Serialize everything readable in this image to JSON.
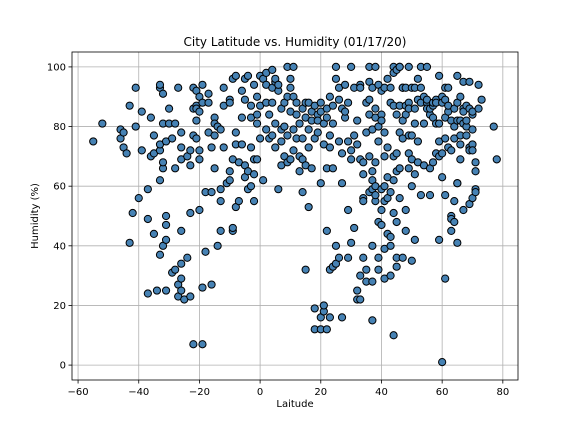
{
  "chart_data": {
    "type": "scatter",
    "title": "City Latitude vs. Humidity (01/17/20)",
    "xlabel": "Laitude",
    "ylabel": "Humidity (%)",
    "xlim": [
      -62,
      85
    ],
    "ylim": [
      -5,
      105
    ],
    "xticks": [
      -60,
      -40,
      -20,
      0,
      20,
      40,
      60,
      80
    ],
    "yticks": [
      0,
      20,
      40,
      60,
      80,
      100
    ],
    "grid": true,
    "marker_color": "#4682b4",
    "marker_edge": "#000000",
    "points": [
      [
        -55,
        75
      ],
      [
        -52,
        81
      ],
      [
        -46,
        76
      ],
      [
        -46,
        79
      ],
      [
        -45,
        78
      ],
      [
        -45,
        73
      ],
      [
        -44,
        71
      ],
      [
        -43,
        41
      ],
      [
        -43,
        87
      ],
      [
        -42,
        51
      ],
      [
        -41,
        93
      ],
      [
        -41,
        80
      ],
      [
        -40,
        56
      ],
      [
        -39,
        72
      ],
      [
        -39,
        85
      ],
      [
        -37,
        24
      ],
      [
        -37,
        49
      ],
      [
        -37,
        59
      ],
      [
        -36,
        70
      ],
      [
        -36,
        83
      ],
      [
        -35,
        44
      ],
      [
        -35,
        71
      ],
      [
        -35,
        77
      ],
      [
        -34,
        25
      ],
      [
        -33,
        93
      ],
      [
        -33,
        94
      ],
      [
        -33,
        72
      ],
      [
        -33,
        74
      ],
      [
        -33,
        62
      ],
      [
        -33,
        37
      ],
      [
        -32,
        40
      ],
      [
        -32,
        66
      ],
      [
        -32,
        68
      ],
      [
        -32,
        81
      ],
      [
        -32,
        91
      ],
      [
        -31,
        47
      ],
      [
        -31,
        50
      ],
      [
        -31,
        42
      ],
      [
        -31,
        25
      ],
      [
        -31,
        75
      ],
      [
        -30,
        86
      ],
      [
        -30,
        81
      ],
      [
        -29,
        31
      ],
      [
        -29,
        76
      ],
      [
        -28,
        32
      ],
      [
        -28,
        81
      ],
      [
        -28,
        66
      ],
      [
        -27,
        93
      ],
      [
        -27,
        23
      ],
      [
        -27,
        27
      ],
      [
        -26,
        25
      ],
      [
        -26,
        29
      ],
      [
        -26,
        34
      ],
      [
        -26,
        45
      ],
      [
        -26,
        78
      ],
      [
        -26,
        73
      ],
      [
        -26,
        69
      ],
      [
        -25,
        22
      ],
      [
        -24,
        36
      ],
      [
        -24,
        70
      ],
      [
        -23,
        23
      ],
      [
        -23,
        51
      ],
      [
        -23,
        72
      ],
      [
        -23,
        67
      ],
      [
        -22,
        7
      ],
      [
        -22,
        86
      ],
      [
        -22,
        93
      ],
      [
        -22,
        77
      ],
      [
        -21,
        82
      ],
      [
        -21,
        76
      ],
      [
        -21,
        87
      ],
      [
        -21,
        86
      ],
      [
        -21,
        92
      ],
      [
        -20,
        90
      ],
      [
        -20,
        85
      ],
      [
        -20,
        72
      ],
      [
        -20,
        69
      ],
      [
        -20,
        52
      ],
      [
        -19,
        26
      ],
      [
        -19,
        88
      ],
      [
        -19,
        7
      ],
      [
        -19,
        94
      ],
      [
        -18,
        38
      ],
      [
        -18,
        58
      ],
      [
        -17,
        88
      ],
      [
        -17,
        91
      ],
      [
        -17,
        78
      ],
      [
        -16,
        58
      ],
      [
        -16,
        27
      ],
      [
        -16,
        73
      ],
      [
        -15,
        83
      ],
      [
        -15,
        77
      ],
      [
        -15,
        81
      ],
      [
        -15,
        66
      ],
      [
        -14,
        40
      ],
      [
        -14,
        80
      ],
      [
        -13,
        55
      ],
      [
        -13,
        45
      ],
      [
        -13,
        59
      ],
      [
        -13,
        79
      ],
      [
        -12,
        87
      ],
      [
        -12,
        93
      ],
      [
        -12,
        73
      ],
      [
        -11,
        61
      ],
      [
        -10,
        89
      ],
      [
        -10,
        88
      ],
      [
        -10,
        62
      ],
      [
        -10,
        65
      ],
      [
        -9,
        45
      ],
      [
        -9,
        46
      ],
      [
        -9,
        69
      ],
      [
        -9,
        96
      ],
      [
        -8,
        97
      ],
      [
        -8,
        78
      ],
      [
        -8,
        53
      ],
      [
        -8,
        74
      ],
      [
        -7,
        55
      ],
      [
        -7,
        68
      ],
      [
        -6,
        92
      ],
      [
        -6,
        74
      ],
      [
        -6,
        83
      ],
      [
        -5,
        89
      ],
      [
        -5,
        63
      ],
      [
        -5,
        67
      ],
      [
        -5,
        96
      ],
      [
        -4,
        97
      ],
      [
        -4,
        65
      ],
      [
        -4,
        59
      ],
      [
        -3,
        73
      ],
      [
        -3,
        60
      ],
      [
        -3,
        83
      ],
      [
        -3,
        87
      ],
      [
        -2,
        55
      ],
      [
        -2,
        69
      ],
      [
        -2,
        64
      ],
      [
        -2,
        94
      ],
      [
        -1,
        69
      ],
      [
        -1,
        81
      ],
      [
        -1,
        84
      ],
      [
        -1,
        90
      ],
      [
        0,
        97
      ],
      [
        0,
        76
      ],
      [
        0,
        87
      ],
      [
        1,
        62
      ],
      [
        1,
        96
      ],
      [
        2,
        98
      ],
      [
        2,
        94
      ],
      [
        2,
        79
      ],
      [
        2,
        88
      ],
      [
        3,
        76
      ],
      [
        3,
        84
      ],
      [
        4,
        99
      ],
      [
        4,
        93
      ],
      [
        4,
        88
      ],
      [
        4,
        77
      ],
      [
        5,
        95
      ],
      [
        5,
        96
      ],
      [
        5,
        81
      ],
      [
        5,
        73
      ],
      [
        6,
        59
      ],
      [
        6,
        92
      ],
      [
        6,
        94
      ],
      [
        7,
        86
      ],
      [
        7,
        67
      ],
      [
        7,
        75
      ],
      [
        7,
        79
      ],
      [
        8,
        70
      ],
      [
        8,
        80
      ],
      [
        8,
        88
      ],
      [
        9,
        77
      ],
      [
        9,
        68
      ],
      [
        9,
        100
      ],
      [
        9,
        90
      ],
      [
        10,
        96
      ],
      [
        10,
        93
      ],
      [
        10,
        69
      ],
      [
        10,
        85
      ],
      [
        11,
        100
      ],
      [
        11,
        90
      ],
      [
        11,
        72
      ],
      [
        11,
        79
      ],
      [
        12,
        88
      ],
      [
        12,
        84
      ],
      [
        12,
        76
      ],
      [
        13,
        70
      ],
      [
        13,
        65
      ],
      [
        13,
        81
      ],
      [
        14,
        58
      ],
      [
        14,
        69
      ],
      [
        14,
        76
      ],
      [
        14,
        86
      ],
      [
        15,
        67
      ],
      [
        15,
        32
      ],
      [
        15,
        88
      ],
      [
        15,
        83
      ],
      [
        16,
        53
      ],
      [
        16,
        88
      ],
      [
        16,
        79
      ],
      [
        16,
        73
      ],
      [
        17,
        85
      ],
      [
        17,
        66
      ],
      [
        17,
        82
      ],
      [
        18,
        19
      ],
      [
        18,
        12
      ],
      [
        18,
        87
      ],
      [
        18,
        76
      ],
      [
        19,
        84
      ],
      [
        19,
        82
      ],
      [
        19,
        78
      ],
      [
        20,
        12
      ],
      [
        20,
        16
      ],
      [
        20,
        61
      ],
      [
        20,
        88
      ],
      [
        20,
        85
      ],
      [
        21,
        18
      ],
      [
        21,
        20
      ],
      [
        21,
        74
      ],
      [
        21,
        81
      ],
      [
        22,
        45
      ],
      [
        22,
        12
      ],
      [
        22,
        66
      ],
      [
        22,
        83
      ],
      [
        22,
        86
      ],
      [
        23,
        32
      ],
      [
        23,
        16
      ],
      [
        23,
        90
      ],
      [
        23,
        73
      ],
      [
        23,
        77
      ],
      [
        24,
        66
      ],
      [
        24,
        33
      ],
      [
        24,
        81
      ],
      [
        24,
        87
      ],
      [
        25,
        100
      ],
      [
        25,
        40
      ],
      [
        25,
        34
      ],
      [
        25,
        96
      ],
      [
        26,
        36
      ],
      [
        26,
        93
      ],
      [
        26,
        89
      ],
      [
        26,
        75
      ],
      [
        27,
        16
      ],
      [
        27,
        86
      ],
      [
        27,
        71
      ],
      [
        27,
        61
      ],
      [
        28,
        83
      ],
      [
        28,
        94
      ],
      [
        28,
        85
      ],
      [
        29,
        52
      ],
      [
        29,
        36
      ],
      [
        29,
        88
      ],
      [
        29,
        75
      ],
      [
        30,
        41
      ],
      [
        30,
        100
      ],
      [
        30,
        72
      ],
      [
        30,
        69
      ],
      [
        31,
        93
      ],
      [
        31,
        46
      ],
      [
        31,
        77
      ],
      [
        32,
        22
      ],
      [
        32,
        25
      ],
      [
        32,
        82
      ],
      [
        32,
        74
      ],
      [
        33,
        22
      ],
      [
        33,
        94
      ],
      [
        33,
        69
      ],
      [
        33,
        30
      ],
      [
        33,
        93
      ],
      [
        34,
        64
      ],
      [
        34,
        56
      ],
      [
        34,
        55
      ],
      [
        34,
        36
      ],
      [
        34,
        68
      ],
      [
        35,
        88
      ],
      [
        35,
        78
      ],
      [
        35,
        28
      ],
      [
        35,
        32
      ],
      [
        36,
        100
      ],
      [
        36,
        89
      ],
      [
        36,
        84
      ],
      [
        36,
        95
      ],
      [
        36,
        58
      ],
      [
        36,
        70
      ],
      [
        37,
        15
      ],
      [
        37,
        28
      ],
      [
        37,
        40
      ],
      [
        37,
        59
      ],
      [
        37,
        62
      ],
      [
        37,
        65
      ],
      [
        37,
        93
      ],
      [
        37,
        79
      ],
      [
        38,
        100
      ],
      [
        38,
        86
      ],
      [
        38,
        83
      ],
      [
        38,
        55
      ],
      [
        38,
        57
      ],
      [
        38,
        68
      ],
      [
        38,
        60
      ],
      [
        39,
        94
      ],
      [
        39,
        75
      ],
      [
        39,
        36
      ],
      [
        39,
        32
      ],
      [
        39,
        80
      ],
      [
        39,
        48
      ],
      [
        40,
        47
      ],
      [
        40,
        52
      ],
      [
        40,
        59
      ],
      [
        40,
        84
      ],
      [
        40,
        92
      ],
      [
        40,
        82
      ],
      [
        41,
        39
      ],
      [
        41,
        70
      ],
      [
        41,
        55
      ],
      [
        41,
        60
      ],
      [
        41,
        78
      ],
      [
        41,
        93
      ],
      [
        41,
        29
      ],
      [
        42,
        44
      ],
      [
        42,
        63
      ],
      [
        42,
        96
      ],
      [
        42,
        73
      ],
      [
        42,
        56
      ],
      [
        43,
        43
      ],
      [
        43,
        58
      ],
      [
        43,
        30
      ],
      [
        43,
        88
      ],
      [
        43,
        93
      ],
      [
        43,
        40
      ],
      [
        44,
        10
      ],
      [
        44,
        100
      ],
      [
        44,
        62
      ],
      [
        44,
        70
      ],
      [
        44,
        51
      ],
      [
        44,
        87
      ],
      [
        44,
        98
      ],
      [
        45,
        48
      ],
      [
        45,
        36
      ],
      [
        45,
        65
      ],
      [
        45,
        99
      ],
      [
        45,
        84
      ],
      [
        45,
        71
      ],
      [
        45,
        33
      ],
      [
        46,
        66
      ],
      [
        46,
        100
      ],
      [
        46,
        87
      ],
      [
        46,
        78
      ],
      [
        46,
        56
      ],
      [
        46,
        100
      ],
      [
        47,
        36
      ],
      [
        47,
        82
      ],
      [
        47,
        93
      ],
      [
        47,
        76
      ],
      [
        47,
        93
      ],
      [
        48,
        84
      ],
      [
        48,
        45
      ],
      [
        48,
        52
      ],
      [
        48,
        87
      ],
      [
        48,
        93
      ],
      [
        49,
        77
      ],
      [
        49,
        66
      ],
      [
        49,
        88
      ],
      [
        49,
        71
      ],
      [
        49,
        100
      ],
      [
        49,
        86
      ],
      [
        50,
        60
      ],
      [
        50,
        35
      ],
      [
        50,
        77
      ],
      [
        50,
        93
      ],
      [
        50,
        69
      ],
      [
        51,
        42
      ],
      [
        51,
        81
      ],
      [
        51,
        93
      ],
      [
        51,
        64
      ],
      [
        51,
        86
      ],
      [
        52,
        68
      ],
      [
        52,
        96
      ],
      [
        52,
        75
      ],
      [
        52,
        89
      ],
      [
        53,
        57
      ],
      [
        53,
        88
      ],
      [
        53,
        100
      ],
      [
        53,
        93
      ],
      [
        54,
        81
      ],
      [
        54,
        67
      ],
      [
        54,
        90
      ],
      [
        55,
        100
      ],
      [
        55,
        88
      ],
      [
        55,
        89
      ],
      [
        55,
        86
      ],
      [
        56,
        84
      ],
      [
        56,
        57
      ],
      [
        56,
        66
      ],
      [
        56,
        86
      ],
      [
        57,
        68
      ],
      [
        57,
        87
      ],
      [
        57,
        88
      ],
      [
        57,
        83
      ],
      [
        58,
        71
      ],
      [
        58,
        81
      ],
      [
        58,
        89
      ],
      [
        58,
        88
      ],
      [
        59,
        42
      ],
      [
        59,
        70
      ],
      [
        59,
        97
      ],
      [
        59,
        81
      ],
      [
        59,
        75
      ],
      [
        60,
        1
      ],
      [
        60,
        63
      ],
      [
        60,
        90
      ],
      [
        60,
        88
      ],
      [
        60,
        71
      ],
      [
        61,
        57
      ],
      [
        61,
        29
      ],
      [
        61,
        76
      ],
      [
        61,
        89
      ],
      [
        61,
        93
      ],
      [
        61,
        83
      ],
      [
        62,
        73
      ],
      [
        62,
        85
      ],
      [
        62,
        87
      ],
      [
        62,
        93
      ],
      [
        63,
        82
      ],
      [
        63,
        50
      ],
      [
        63,
        45
      ],
      [
        63,
        49
      ],
      [
        63,
        72
      ],
      [
        64,
        48
      ],
      [
        64,
        80
      ],
      [
        64,
        55
      ],
      [
        64,
        76
      ],
      [
        64,
        86
      ],
      [
        65,
        61
      ],
      [
        65,
        41
      ],
      [
        65,
        82
      ],
      [
        65,
        88
      ],
      [
        65,
        97
      ],
      [
        65,
        61
      ],
      [
        66,
        77
      ],
      [
        66,
        69
      ],
      [
        66,
        82
      ],
      [
        66,
        90
      ],
      [
        66,
        74
      ],
      [
        67,
        86
      ],
      [
        67,
        95
      ],
      [
        67,
        52
      ],
      [
        67,
        85
      ],
      [
        67,
        81
      ],
      [
        68,
        87
      ],
      [
        68,
        77
      ],
      [
        68,
        80
      ],
      [
        68,
        82
      ],
      [
        69,
        54
      ],
      [
        69,
        86
      ],
      [
        69,
        73
      ],
      [
        69,
        72
      ],
      [
        69,
        95
      ],
      [
        70,
        74
      ],
      [
        70,
        56
      ],
      [
        70,
        79
      ],
      [
        70,
        84
      ],
      [
        70,
        72
      ],
      [
        70,
        85
      ],
      [
        71,
        59
      ],
      [
        71,
        65
      ],
      [
        71,
        68
      ],
      [
        71,
        58
      ],
      [
        72,
        94
      ],
      [
        72,
        86
      ],
      [
        73,
        89
      ],
      [
        77,
        80
      ],
      [
        78,
        69
      ]
    ]
  }
}
